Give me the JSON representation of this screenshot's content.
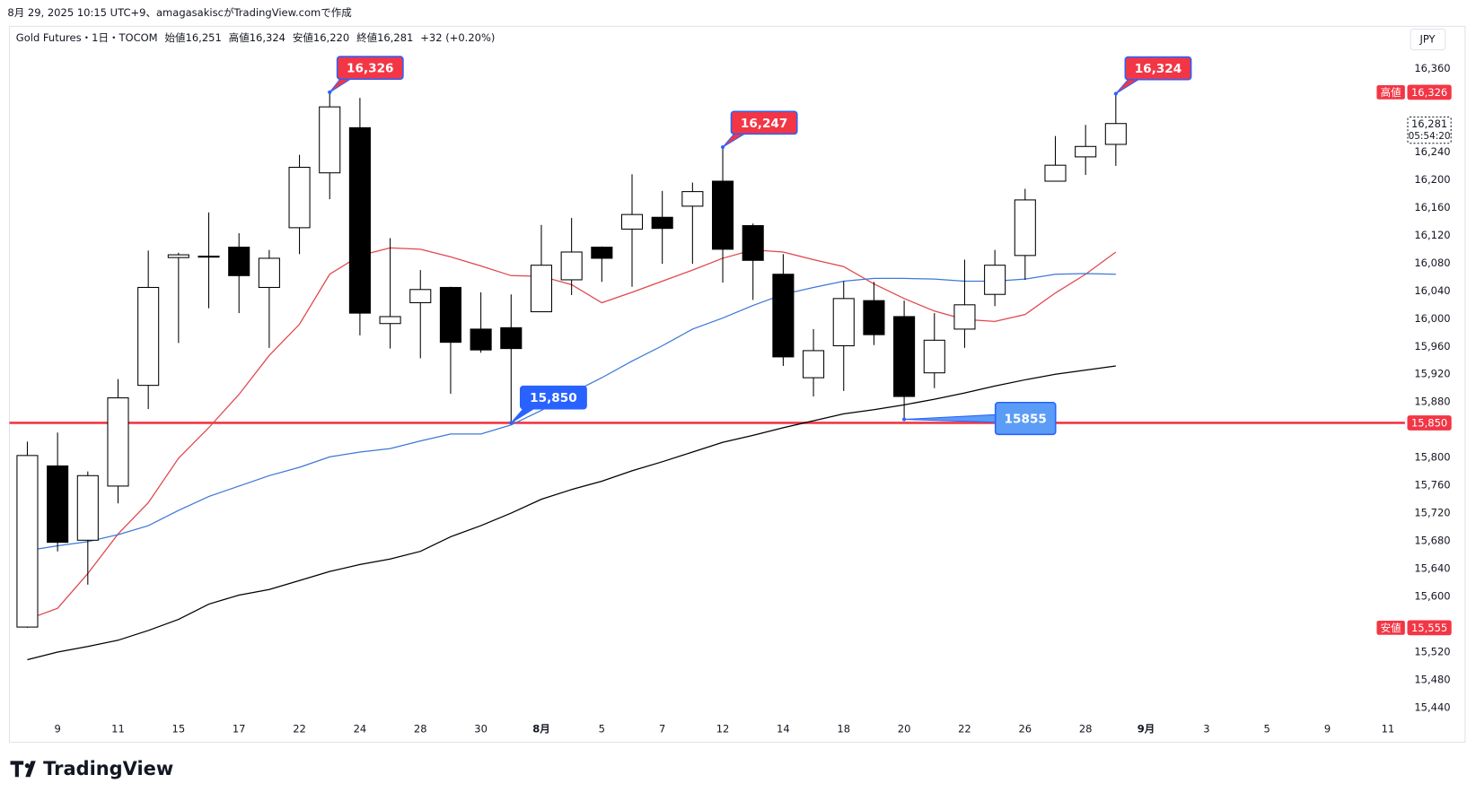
{
  "header": {
    "caption": "8月 29, 2025 10:15 UTC+9、amagasakiscがTradingView.comで作成",
    "symbol": "Gold Futures・1日・TOCOM",
    "ohlc": [
      "始値16,251",
      "高値16,324",
      "安値16,220",
      "終値16,281"
    ],
    "change": "+32 (+0.20%)"
  },
  "currency": "JPY",
  "brand": "TradingView",
  "chart_data": {
    "type": "candlestick",
    "categories": [
      null,
      "9",
      null,
      "11",
      null,
      "15",
      null,
      "17",
      null,
      "22",
      null,
      "24",
      null,
      "28",
      null,
      "30",
      null,
      "8月",
      null,
      "5",
      null,
      "7",
      null,
      "12",
      null,
      "14",
      null,
      "18",
      null,
      "20",
      null,
      "22",
      null,
      "26",
      null,
      "28",
      null,
      "9月",
      null,
      "3",
      null,
      "5",
      null,
      "9",
      null,
      "11"
    ],
    "open": [
      15556,
      15788,
      15681,
      15759,
      15904,
      16088,
      16089,
      16103,
      16045,
      16131,
      16210,
      16275,
      15993,
      16023,
      16045,
      15985,
      15987,
      16010,
      16056,
      16103,
      16129,
      16146,
      16162,
      16198,
      16134,
      16064,
      15915,
      15961,
      16026,
      16003,
      15922,
      15985,
      16035,
      16091,
      16198,
      16233,
      16251,
      null,
      null,
      null,
      null,
      null,
      null,
      null,
      null,
      null
    ],
    "high": [
      15823,
      15836,
      15780,
      15913,
      16098,
      16095,
      16153,
      16123,
      16099,
      16236,
      16326,
      16318,
      16116,
      16070,
      16046,
      16038,
      16035,
      16135,
      16145,
      16104,
      16208,
      16184,
      16196,
      16247,
      16137,
      16093,
      15985,
      16054,
      16053,
      16026,
      16008,
      16085,
      16099,
      16187,
      16263,
      16279,
      16324,
      null,
      null,
      null,
      null,
      null,
      null,
      null,
      null,
      null
    ],
    "low": [
      15555,
      15665,
      15617,
      15734,
      15870,
      15965,
      16015,
      16008,
      15958,
      16093,
      16172,
      15976,
      15957,
      15943,
      15892,
      15951,
      15850,
      16010,
      16034,
      16053,
      16046,
      16079,
      16079,
      16052,
      16027,
      15932,
      15888,
      15896,
      15962,
      15855,
      15900,
      15958,
      16018,
      16056,
      16198,
      16207,
      16220,
      null,
      null,
      null,
      null,
      null,
      null,
      null,
      null,
      null
    ],
    "close": [
      15803,
      15678,
      15774,
      15886,
      16045,
      16092,
      16090,
      16062,
      16087,
      16218,
      16305,
      16008,
      16003,
      16042,
      15966,
      15955,
      15957,
      16077,
      16096,
      16087,
      16150,
      16130,
      16183,
      16100,
      16084,
      15945,
      15954,
      16029,
      15977,
      15888,
      15969,
      16020,
      16077,
      16171,
      16221,
      16248,
      16281,
      null,
      null,
      null,
      null,
      null,
      null,
      null,
      null,
      null
    ],
    "up_color": "#ffffff",
    "down_color": "#000000",
    "wick_color": "#000000",
    "series": [
      {
        "color": "#e0474c",
        "values": [
          15567,
          15583,
          15633,
          15690,
          15735,
          15799,
          15843,
          15891,
          15947,
          15992,
          16064,
          16091,
          16102,
          16100,
          16089,
          16076,
          16062,
          16061,
          16049,
          16023,
          16038,
          16054,
          16070,
          16087,
          16099,
          16096,
          16085,
          16075,
          16050,
          16029,
          16011,
          15999,
          15996,
          16006,
          16037,
          16064,
          16096,
          null,
          null,
          null,
          null,
          null,
          null,
          null,
          null,
          null
        ]
      },
      {
        "color": "#3d78d8",
        "values": [
          15666,
          15673,
          15679,
          15689,
          15702,
          15724,
          15744,
          15759,
          15774,
          15786,
          15801,
          15808,
          15813,
          15824,
          15834,
          15834,
          15847,
          15868,
          15893,
          15915,
          15939,
          15961,
          15985,
          16001,
          16019,
          16035,
          16045,
          16054,
          16058,
          16058,
          16057,
          16054,
          16054,
          16057,
          16064,
          16065,
          16064,
          null,
          null,
          null,
          null,
          null,
          null,
          null,
          null,
          null
        ]
      },
      {
        "color": "#000000",
        "values": [
          15509,
          15520,
          15528,
          15537,
          15551,
          15567,
          15589,
          15602,
          15610,
          15623,
          15636,
          15646,
          15654,
          15665,
          15686,
          15702,
          15720,
          15740,
          15754,
          15766,
          15781,
          15794,
          15808,
          15822,
          15832,
          15843,
          15853,
          15863,
          15869,
          15876,
          15884,
          15893,
          15903,
          15912,
          15920,
          15926,
          15932,
          null,
          null,
          null,
          null,
          null,
          null,
          null,
          null,
          null
        ]
      }
    ],
    "ylim": [
      15424,
      16421
    ],
    "yticks": [
      {
        "value": 15440,
        "label": "15,440"
      },
      {
        "value": 15480,
        "label": "15,480"
      },
      {
        "value": 15520,
        "label": "15,520"
      },
      {
        "value": 15600,
        "label": "15,600"
      },
      {
        "value": 15640,
        "label": "15,640"
      },
      {
        "value": 15680,
        "label": "15,680"
      },
      {
        "value": 15720,
        "label": "15,720"
      },
      {
        "value": 15760,
        "label": "15,760"
      },
      {
        "value": 15800,
        "label": "15,800"
      },
      {
        "value": 15880,
        "label": "15,880"
      },
      {
        "value": 15920,
        "label": "15,920"
      },
      {
        "value": 15960,
        "label": "15,960"
      },
      {
        "value": 16000,
        "label": "16,000"
      },
      {
        "value": 16040,
        "label": "16,040"
      },
      {
        "value": 16080,
        "label": "16,080"
      },
      {
        "value": 16120,
        "label": "16,120"
      },
      {
        "value": 16160,
        "label": "16,160"
      },
      {
        "value": 16200,
        "label": "16,200"
      },
      {
        "value": 16240,
        "label": "16,240"
      },
      {
        "value": 16360,
        "label": "16,360"
      }
    ],
    "grid": false,
    "callouts": [
      {
        "label": "16,326",
        "value": 16326,
        "color": "#f23645"
      },
      {
        "label": "16,247",
        "value": 16247,
        "color": "#f23645"
      },
      {
        "label": "16,324",
        "value": 16324,
        "color": "#f23645"
      },
      {
        "label": "15,850",
        "value": 15850,
        "color": "#2962ff"
      },
      {
        "label": "15855",
        "value": 15855,
        "color": "#5b9cf6"
      }
    ],
    "price_tags": [
      {
        "name": "高値",
        "value": 16326,
        "label": "16,326",
        "color": "#f23645"
      },
      {
        "value": 16281,
        "label": "16,281",
        "countdown": "05:54:20",
        "color": "#ffffff"
      },
      {
        "value": 15850,
        "label": "15,850",
        "color": "#f23645",
        "line": true
      },
      {
        "name": "安値",
        "value": 15555,
        "label": "15,555",
        "color": "#f23645"
      }
    ]
  }
}
